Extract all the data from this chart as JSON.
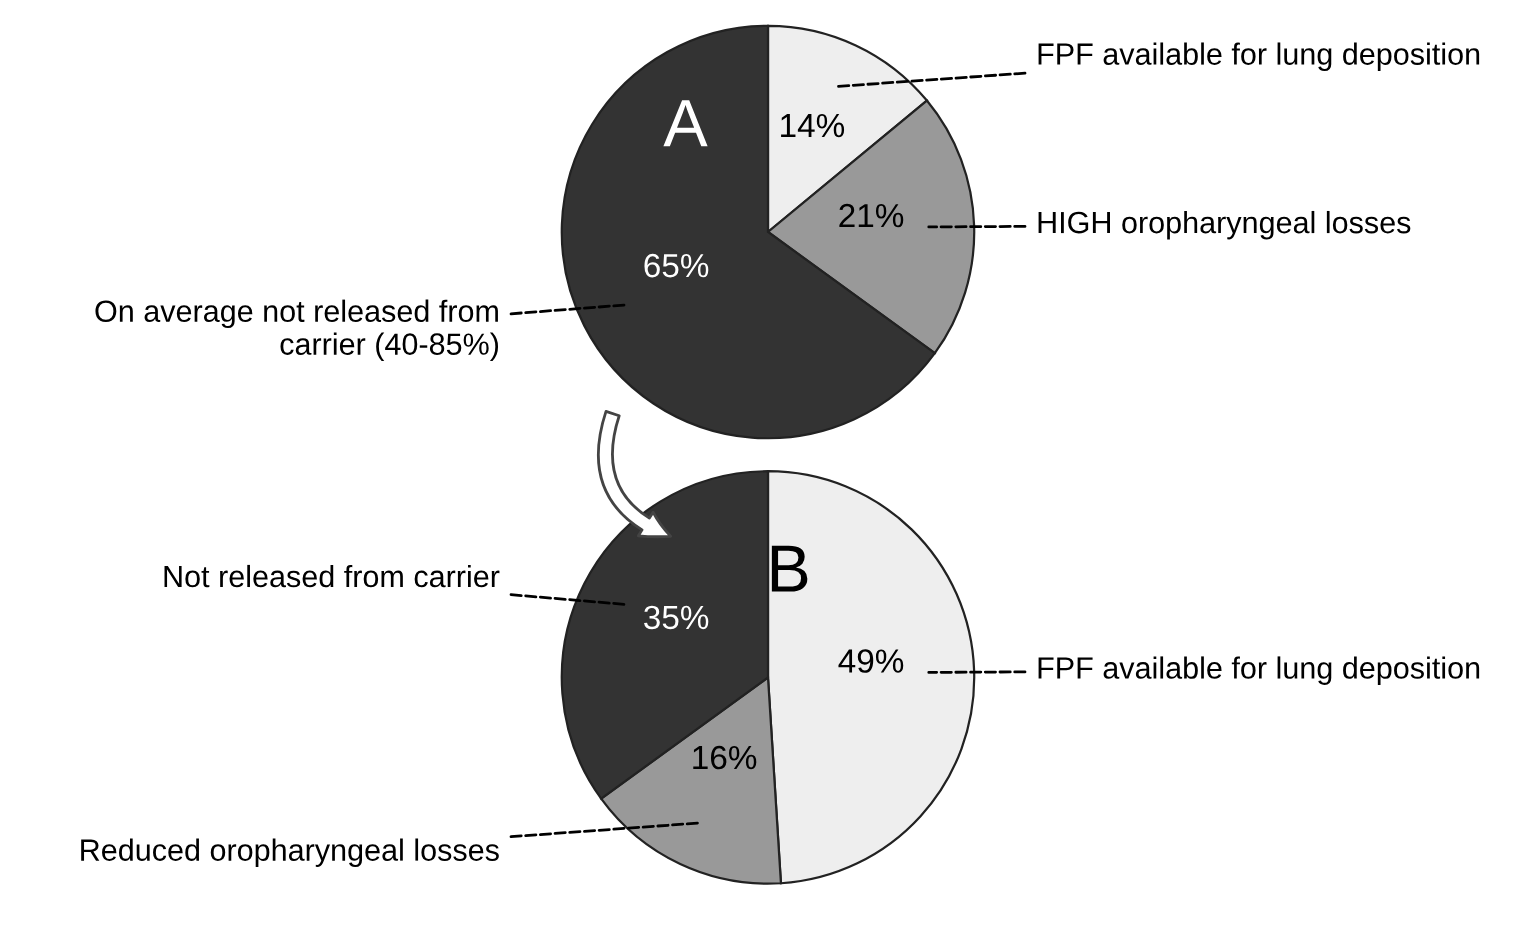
{
  "chart_data": [
    {
      "type": "pie",
      "title": "A",
      "categories": [
        "FPF available for lung deposition",
        "HIGH oropharyngeal losses",
        "On average not released from carrier (40-85%)"
      ],
      "values": [
        14,
        21,
        65
      ],
      "colors": [
        "#eeeeee",
        "#999999",
        "#333333"
      ],
      "value_labels": [
        "14%",
        "21%",
        "65%"
      ]
    },
    {
      "type": "pie",
      "title": "B",
      "categories": [
        "FPF available for lung deposition",
        "Reduced oropharyngeal losses",
        "Not released from carrier"
      ],
      "values": [
        49,
        16,
        35
      ],
      "colors": [
        "#eeeeee",
        "#999999",
        "#333333"
      ],
      "value_labels": [
        "49%",
        "16%",
        "35%"
      ]
    }
  ]
}
